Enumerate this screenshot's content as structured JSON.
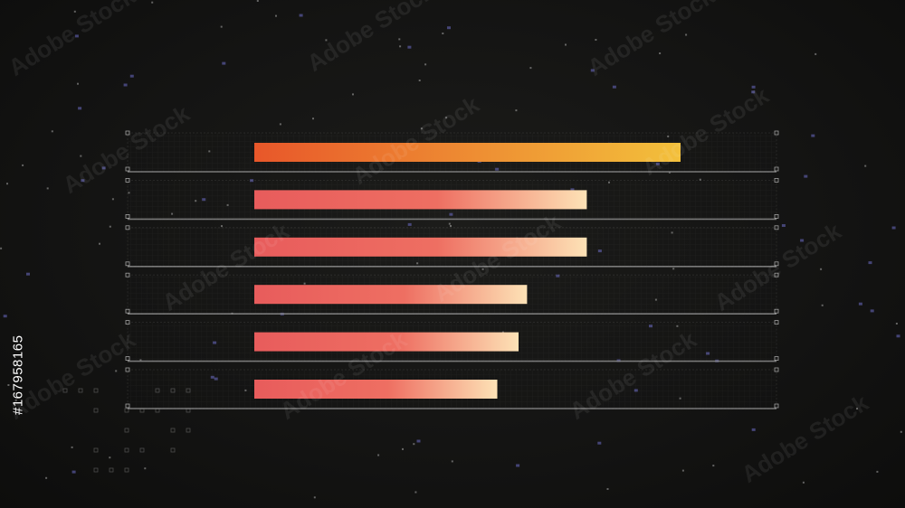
{
  "chart_data": {
    "type": "bar",
    "orientation": "horizontal",
    "title": "",
    "xlabel": "",
    "ylabel": "",
    "xlim": [
      0,
      100
    ],
    "grid": true,
    "legend": "none",
    "values": [
      100,
      78,
      78,
      64,
      62,
      57
    ],
    "colors": {
      "top_bar_start": "#e8572a",
      "top_bar_end": "#f3c03b",
      "bar_start": "#e85c5c",
      "bar_end": "#fde2b6",
      "row_line": "#8a8a8a"
    }
  },
  "overlay": {
    "watermark_text": "Adobe Stock",
    "stock_id": "#167958165"
  }
}
